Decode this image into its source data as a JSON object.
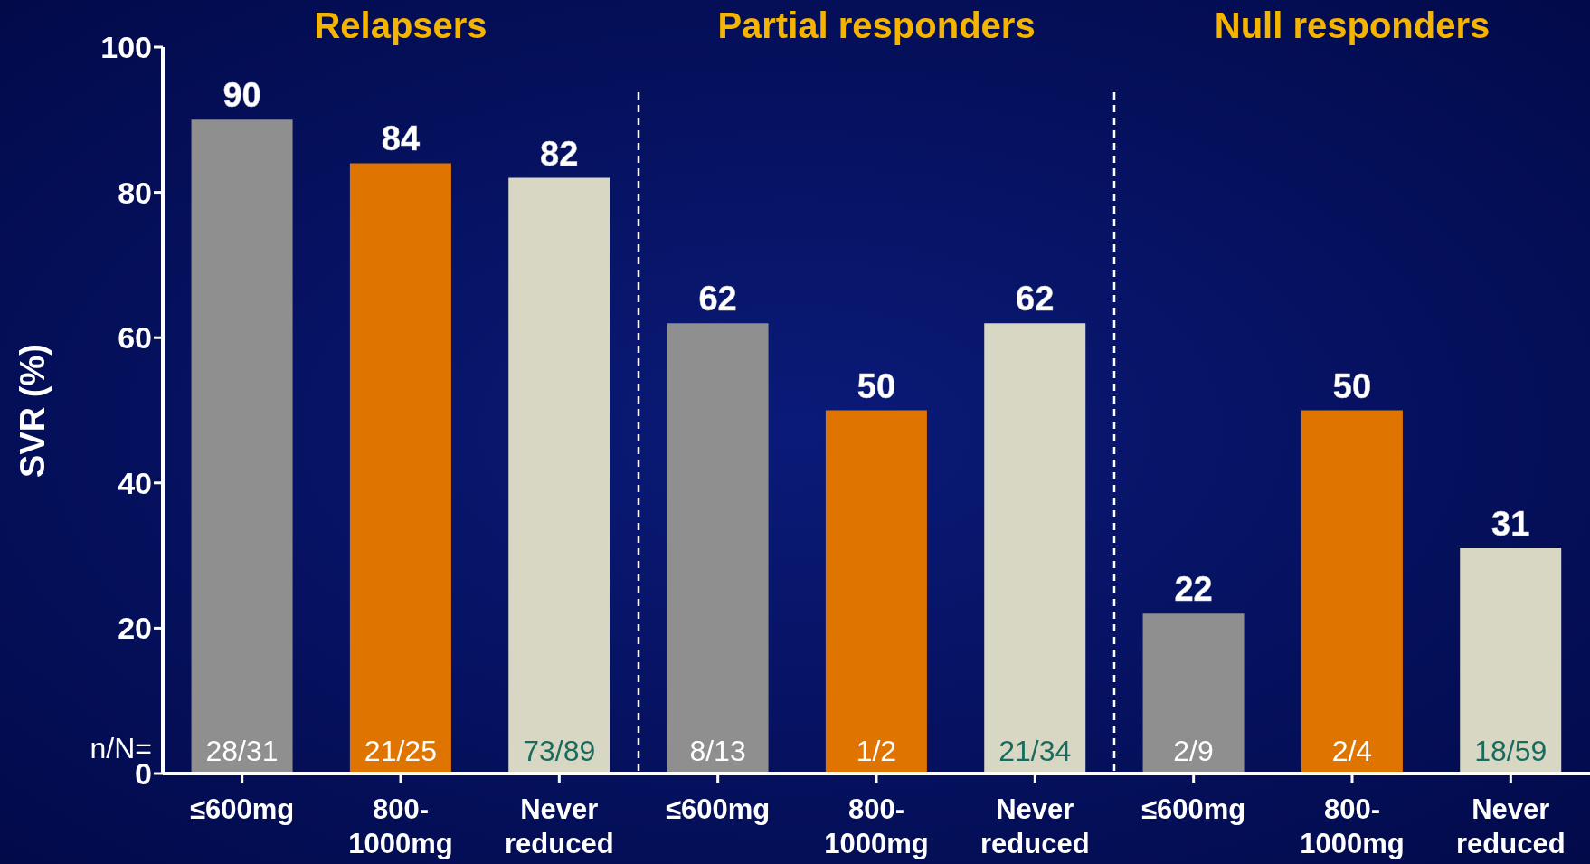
{
  "chart_data": {
    "type": "bar",
    "ylabel": "SVR (%)",
    "categories": [
      "≤600mg",
      "800-1000mg",
      "Never reduced",
      "≤600mg",
      "800-1000mg",
      "Never reduced",
      "≤600mg",
      "800-1000mg",
      "Never reduced"
    ],
    "values": [
      90,
      84,
      82,
      62,
      50,
      62,
      22,
      50,
      31
    ],
    "colors": [
      "#8f8f8f",
      "#e07400",
      "#d8d7c3",
      "#8f8f8f",
      "#e07400",
      "#d8d7c3",
      "#8f8f8f",
      "#e07400",
      "#d8d7c3"
    ],
    "ylim": [
      0,
      100
    ],
    "yticks": [
      0,
      20,
      40,
      60,
      80,
      100
    ],
    "grid": false,
    "legend": false,
    "data_labels": true,
    "annotations": [
      "Relapsers",
      "Partial responders",
      "Null responders",
      "n/N=",
      "28/31",
      "21/25",
      "73/89",
      "8/13",
      "1/2",
      "21/34",
      "2/9",
      "2/4",
      "18/59"
    ]
  }
}
